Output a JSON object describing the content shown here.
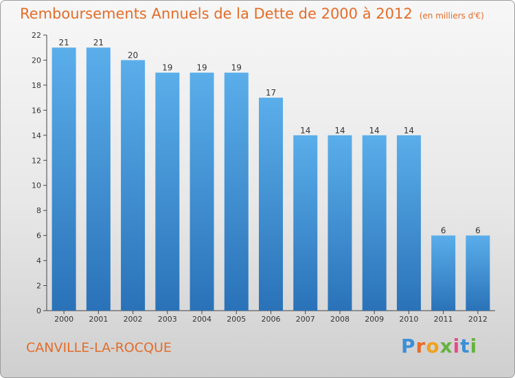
{
  "title": "Remboursements Annuels de la Dette de 2000 à 2012",
  "subtitle": "(en milliers d'€)",
  "commune": "CANVILLE-LA-ROCQUE",
  "logo": {
    "parts": [
      "P",
      "r",
      "o",
      "x",
      "i",
      "t",
      "i"
    ]
  },
  "colors": {
    "accent": "#e36c28",
    "bar": "#4a9fe0",
    "barDark": "#2a72b8"
  },
  "chart_data": {
    "type": "bar",
    "categories": [
      "2000",
      "2001",
      "2002",
      "2003",
      "2004",
      "2005",
      "2006",
      "2007",
      "2008",
      "2009",
      "2010",
      "2011",
      "2012"
    ],
    "values": [
      21,
      21,
      20,
      19,
      19,
      19,
      17,
      14,
      14,
      14,
      14,
      6,
      6
    ],
    "ylim": [
      0,
      22
    ],
    "yticks": [
      0,
      2,
      4,
      6,
      8,
      10,
      12,
      14,
      16,
      18,
      20,
      22
    ],
    "grid": false,
    "data_labels": true
  }
}
